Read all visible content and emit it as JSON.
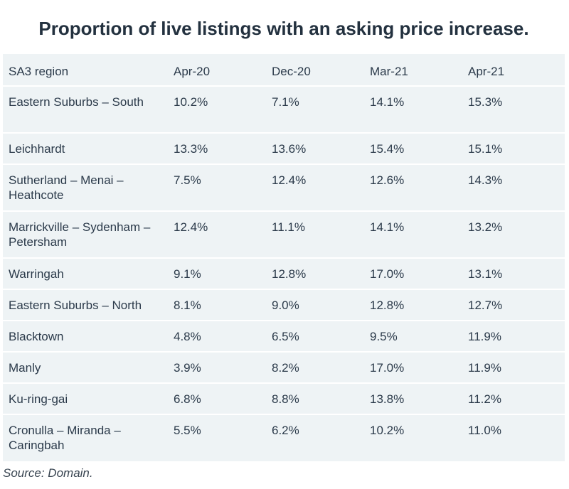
{
  "chart_data": {
    "type": "table",
    "title": "Proportion of live listings with an asking price increase.",
    "columns": [
      "SA3 region",
      "Apr-20",
      "Dec-20",
      "Mar-21",
      "Apr-21"
    ],
    "rows": [
      [
        "Eastern Suburbs – South",
        "10.2%",
        "7.1%",
        "14.1%",
        "15.3%"
      ],
      [
        "Leichhardt",
        "13.3%",
        "13.6%",
        "15.4%",
        "15.1%"
      ],
      [
        "Sutherland – Menai – Heathcote",
        "7.5%",
        "12.4%",
        "12.6%",
        "14.3%"
      ],
      [
        "Marrickville – Sydenham – Petersham",
        "12.4%",
        "11.1%",
        "14.1%",
        "13.2%"
      ],
      [
        "Warringah",
        "9.1%",
        "12.8%",
        "17.0%",
        "13.1%"
      ],
      [
        "Eastern Suburbs – North",
        "8.1%",
        "9.0%",
        "12.8%",
        "12.7%"
      ],
      [
        "Blacktown",
        "4.8%",
        "6.5%",
        "9.5%",
        "11.9%"
      ],
      [
        "Manly",
        "3.9%",
        "8.2%",
        "17.0%",
        "11.9%"
      ],
      [
        "Ku-ring-gai",
        "6.8%",
        "8.8%",
        "13.8%",
        "11.2%"
      ],
      [
        "Cronulla – Miranda – Caringbah",
        "5.5%",
        "6.2%",
        "10.2%",
        "11.0%"
      ]
    ],
    "source": "Source: Domain."
  },
  "colors": {
    "background": "#eef3f5",
    "title_text": "#23313f",
    "body_text": "#2b3a4a"
  }
}
